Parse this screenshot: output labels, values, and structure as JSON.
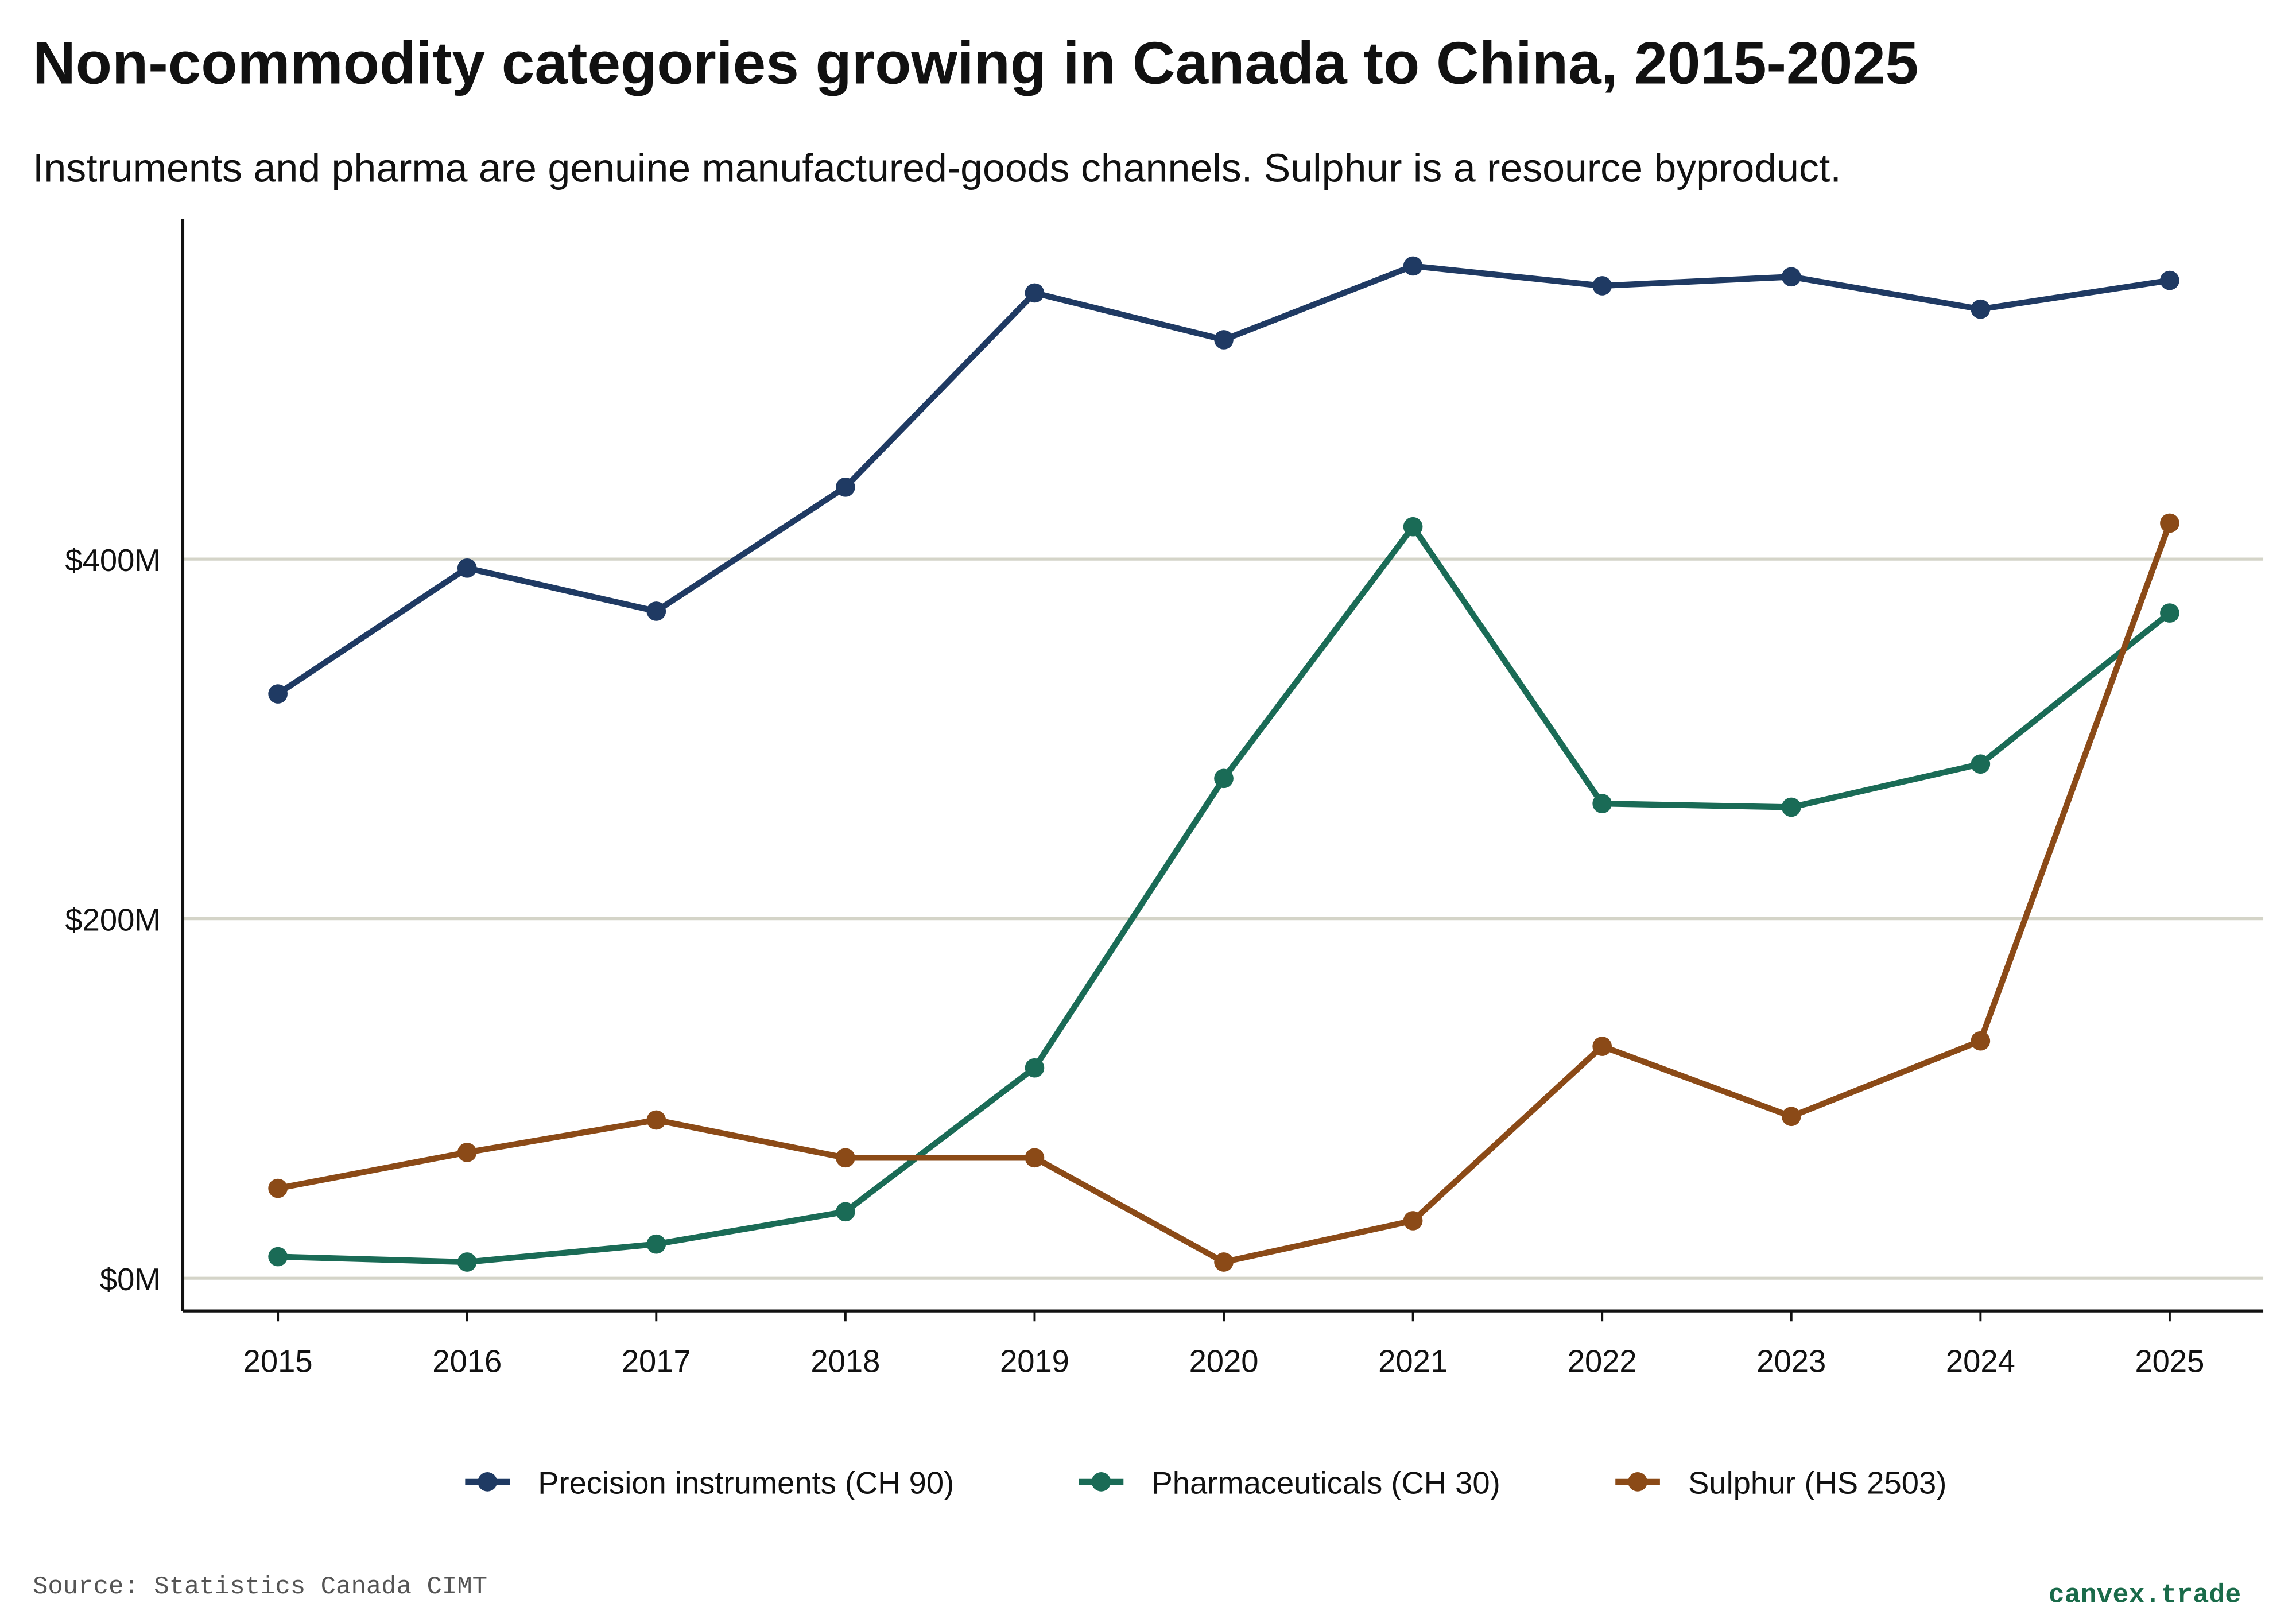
{
  "chart_data": {
    "type": "line",
    "title": "Non-commodity categories growing in Canada to China, 2015-2025",
    "subtitle": "Instruments and pharma are genuine manufactured-goods channels. Sulphur is a resource byproduct.",
    "x": [
      "2015",
      "2016",
      "2017",
      "2018",
      "2019",
      "2020",
      "2021",
      "2022",
      "2023",
      "2024",
      "2025"
    ],
    "yticks": [
      {
        "value": 0,
        "label": "$0M"
      },
      {
        "value": 200,
        "label": "$200M"
      },
      {
        "value": 400,
        "label": "$400M"
      }
    ],
    "ylim": [
      -18,
      590
    ],
    "grid": "horizontal",
    "legend_position": "bottom",
    "series": [
      {
        "name": "Precision instruments (CH 90)",
        "color": "#1f3a63",
        "values": [
          325,
          395,
          371,
          440,
          548,
          522,
          563,
          552,
          557,
          539,
          555
        ]
      },
      {
        "name": "Pharmaceuticals (CH 30)",
        "color": "#1a6b56",
        "values": [
          12,
          9,
          19,
          37,
          117,
          278,
          418,
          264,
          262,
          286,
          370
        ]
      },
      {
        "name": "Sulphur (HS 2503)",
        "color": "#8b4a17",
        "values": [
          50,
          70,
          88,
          67,
          67,
          9,
          32,
          129,
          90,
          132,
          420
        ]
      }
    ]
  },
  "footer": {
    "source": "Source: Statistics Canada CIMT",
    "brand": "canvex.trade"
  }
}
